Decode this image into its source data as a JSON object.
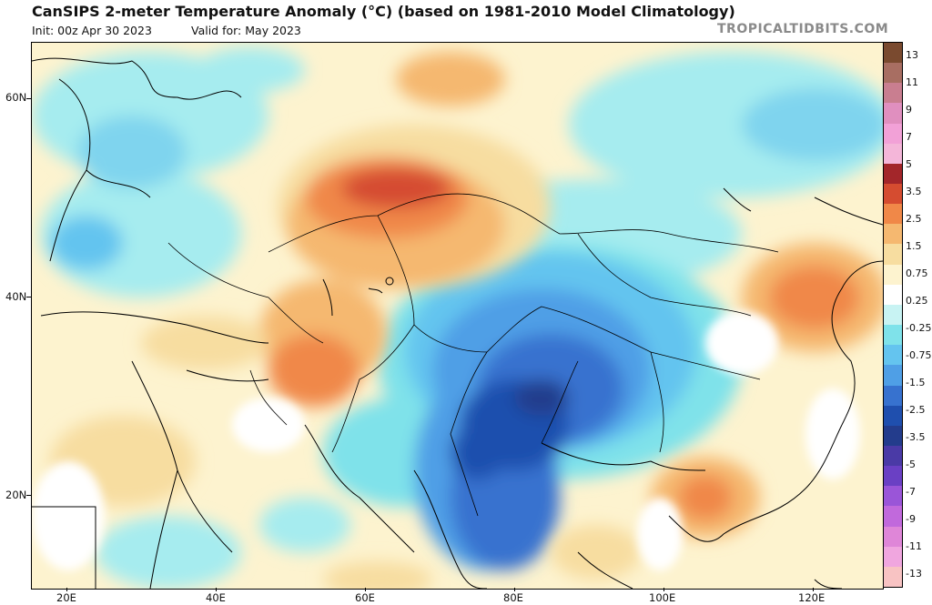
{
  "header": {
    "title": "CanSIPS 2-meter Temperature Anomaly (°C) (based on 1981-2010 Model Climatology)",
    "init": "Init: 00z Apr 30 2023",
    "valid": "Valid for: May 2023",
    "brand": "TROPICALTIDBITS.COM"
  },
  "axes": {
    "lat_labels": [
      "60N",
      "40N",
      "20N"
    ],
    "lon_labels": [
      "20E",
      "40E",
      "60E",
      "80E",
      "100E",
      "120E"
    ]
  },
  "colorbar": {
    "labels": [
      "13",
      "11",
      "9",
      "7",
      "5",
      "3.5",
      "2.5",
      "1.5",
      "0.75",
      "0.25",
      "-0.25",
      "-0.75",
      "-1.5",
      "-2.5",
      "-3.5",
      "-5",
      "-7",
      "-9",
      "-11",
      "-13"
    ],
    "colors": [
      "#7a4a2f",
      "#a86e62",
      "#c97e90",
      "#e08fbf",
      "#f2a1d7",
      "#f4b6d9",
      "#a3262a",
      "#d54c30",
      "#f08848",
      "#f5b870",
      "#f7dda0",
      "#fdf3cf",
      "#ffffff",
      "#c8f3f3",
      "#7fe2ea",
      "#64c4ef",
      "#4f9fe6",
      "#3772cf",
      "#1f4fae",
      "#233c8c",
      "#4a3aa6",
      "#6a40c4",
      "#9a55d8",
      "#c169dc",
      "#df86d8",
      "#f0a6df",
      "#f8c3c3"
    ]
  }
}
